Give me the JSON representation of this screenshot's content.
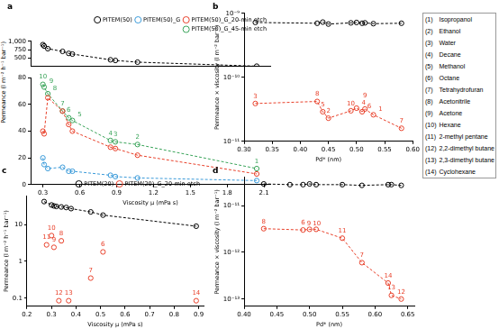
{
  "chart_data": [
    {
      "type": "scatter",
      "title": "a",
      "x_label": "Viscosity μ (mPa s)",
      "y_label": "Permeance (l m⁻² h⁻¹ bar⁻¹)",
      "x": [
        0.3,
        0.31,
        0.34,
        0.46,
        0.51,
        0.54,
        0.85,
        0.89,
        1.07,
        2.04
      ],
      "xlim": [
        0.2,
        2.15
      ],
      "xticks": [
        0.3,
        0.6,
        0.9,
        1.2,
        1.5,
        1.8,
        2.1
      ],
      "ylim": [
        0,
        80
      ],
      "yticks": [
        0,
        20,
        40,
        60,
        80
      ],
      "y2lim": [
        250,
        1000
      ],
      "y2ticks": [
        500,
        750,
        {
          "value": 1000,
          "label": "1,000"
        }
      ],
      "grid": false,
      "legend": "top right",
      "series": [
        {
          "name": "PITEM(50)",
          "color": "#000000",
          "marker": "circle",
          "line_style": "dashed",
          "axis": "y2",
          "values": [
            900,
            860,
            780,
            700,
            640,
            620,
            450,
            430,
            380,
            260
          ]
        },
        {
          "name": "PITEM(50)_G",
          "color": "#3a9ad9",
          "marker": "circle",
          "line_style": "dashed",
          "values": [
            20,
            15,
            12,
            13,
            10,
            10,
            7,
            6,
            5,
            3
          ]
        },
        {
          "name": "PITEM(50)_G_20-min etch",
          "color": "#e8402a",
          "marker": "circle",
          "line_style": "dashed",
          "values": [
            40,
            38,
            65,
            55,
            45,
            40,
            28,
            27,
            22,
            8
          ]
        },
        {
          "name": "PITEM(50)_G_45-min etch",
          "color": "#3aa45a",
          "marker": "circle",
          "line_style": "dashed",
          "values": [
            75,
            73,
            68,
            55,
            50,
            48,
            33,
            32,
            30,
            12
          ],
          "point_labels": [
            "10",
            "9",
            "8",
            "7",
            "6",
            "5",
            "4",
            "3",
            "2",
            "1"
          ]
        }
      ]
    },
    {
      "type": "scatter",
      "title": "b",
      "x_label": "Pd* (nm)",
      "y_label": "Permeance × viscosity (l m⁻² bar⁻¹)",
      "x": [
        0.32,
        0.43,
        0.44,
        0.45,
        0.49,
        0.5,
        0.51,
        0.515,
        0.53,
        0.58
      ],
      "xlim": [
        0.3,
        0.6
      ],
      "xticks": [
        {
          "value": 0.3,
          "label": "0.30"
        },
        0.35,
        {
          "value": 0.4,
          "label": "0.40"
        },
        0.45,
        {
          "value": 0.5,
          "label": "0.50"
        },
        0.55,
        {
          "value": 0.6,
          "label": "0.60"
        }
      ],
      "log": "y",
      "ylim": [
        1e-11,
        1e-09
      ],
      "yticks": [
        {
          "value": 1e-11,
          "label": "10⁻¹¹"
        },
        {
          "value": 1e-10,
          "label": "10⁻¹⁰"
        },
        {
          "value": 1e-09,
          "label": "10⁻⁹"
        }
      ],
      "grid": false,
      "series": [
        {
          "color": "#000000",
          "marker": "circle",
          "line_style": "dashed",
          "values": [
            7.2e-10,
            7e-10,
            7.3e-10,
            6.8e-10,
            7.1e-10,
            7.2e-10,
            7e-10,
            7.1e-10,
            6.9e-10,
            7e-10
          ]
        },
        {
          "color": "#e8402a",
          "marker": "circle",
          "line_style": "dashed",
          "values": [
            3.9e-11,
            4.2e-11,
            2.9e-11,
            2.3e-11,
            3e-11,
            3.3e-11,
            2.9e-11,
            3.2e-11,
            2.6e-11,
            1.6e-11
          ],
          "point_labels": [
            "3",
            "8",
            "5",
            "2",
            "10",
            "4",
            "6",
            "9",
            "1",
            "7"
          ]
        }
      ]
    },
    {
      "type": "scatter",
      "title": "c",
      "x_label": "Viscosity μ (mPa s)",
      "y_label": "Permeance (l m⁻² h⁻¹ bar⁻¹)",
      "xlim": [
        0.2,
        0.92
      ],
      "xticks": [
        0.2,
        0.3,
        0.4,
        0.5,
        0.6,
        0.7,
        0.8,
        0.9
      ],
      "log": "y",
      "ylim": [
        0.06,
        60
      ],
      "yticks": [
        0.1,
        1,
        10
      ],
      "grid": false,
      "legend": "top right",
      "series": [
        {
          "name": "PITEM(20)",
          "color": "#000000",
          "marker": "circle",
          "line_style": "dashed",
          "x": [
            0.27,
            0.3,
            0.31,
            0.32,
            0.34,
            0.36,
            0.38,
            0.46,
            0.51,
            0.89
          ],
          "values": [
            42,
            34,
            32,
            31,
            30,
            29,
            27,
            22,
            18,
            9
          ]
        },
        {
          "name": "PITEM(20)_G_20-min etch",
          "color": "#e8402a",
          "marker": "circle",
          "line_style": "none",
          "x": [
            0.28,
            0.3,
            0.31,
            0.33,
            0.34,
            0.37,
            0.46,
            0.51,
            0.89
          ],
          "values": [
            2.8,
            5.0,
            2.4,
            0.085,
            3.6,
            0.085,
            0.35,
            1.8,
            0.085
          ],
          "point_labels": [
            "11",
            "10",
            "9",
            "12",
            "8",
            "13",
            "7",
            "6",
            "14"
          ]
        }
      ]
    },
    {
      "type": "scatter",
      "title": "d",
      "x_label": "Pd* (nm)",
      "y_label": "Permeance × viscosity (l m⁻² bar⁻¹)",
      "xlim": [
        0.4,
        0.66
      ],
      "xticks": [
        {
          "value": 0.4,
          "label": "0.40"
        },
        0.45,
        {
          "value": 0.5,
          "label": "0.50"
        },
        0.55,
        {
          "value": 0.6,
          "label": "0.60"
        },
        0.65
      ],
      "log": "y",
      "ylim": [
        7e-14,
        4e-11
      ],
      "yticks": [
        {
          "value": 1e-13,
          "label": "10⁻¹³"
        },
        {
          "value": 1e-12,
          "label": "10⁻¹²"
        },
        {
          "value": 1e-11,
          "label": "10⁻¹¹"
        }
      ],
      "grid": false,
      "series": [
        {
          "color": "#000000",
          "marker": "circle",
          "line_style": "dashed",
          "x": [
            0.43,
            0.47,
            0.49,
            0.5,
            0.51,
            0.55,
            0.58,
            0.62,
            0.625,
            0.64
          ],
          "values": [
            2.9e-11,
            2.8e-11,
            2.8e-11,
            2.9e-11,
            2.8e-11,
            2.8e-11,
            2.7e-11,
            2.8e-11,
            2.8e-11,
            2.7e-11
          ]
        },
        {
          "color": "#e8402a",
          "marker": "circle",
          "line_style": "dashed",
          "x": [
            0.43,
            0.49,
            0.5,
            0.51,
            0.55,
            0.58,
            0.62,
            0.625,
            0.64
          ],
          "values": [
            3.2e-12,
            3e-12,
            3.1e-12,
            3.1e-12,
            2e-12,
            6e-13,
            2.2e-13,
            1.2e-13,
            1e-13
          ],
          "point_labels": [
            "8",
            "6",
            "10",
            "9",
            "11",
            "7",
            "14",
            "13",
            "12"
          ]
        }
      ]
    }
  ],
  "solvent_key": [
    {
      "number": "(1)",
      "name": "Isopropanol"
    },
    {
      "number": "(2)",
      "name": "Ethanol"
    },
    {
      "number": "(3)",
      "name": "Water"
    },
    {
      "number": "(4)",
      "name": "Decane"
    },
    {
      "number": "(5)",
      "name": "Methanol"
    },
    {
      "number": "(6)",
      "name": "Octane"
    },
    {
      "number": "(7)",
      "name": "Tetrahydrofuran"
    },
    {
      "number": "(8)",
      "name": "Acetonitrile"
    },
    {
      "number": "(9)",
      "name": "Acetone"
    },
    {
      "number": "(10)",
      "name": "Hexane"
    },
    {
      "number": "(11)",
      "name": "2-methyl pentane"
    },
    {
      "number": "(12)",
      "name": "2,2-dimethyl butane"
    },
    {
      "number": "(13)",
      "name": "2,3-dimethyl butane"
    },
    {
      "number": "(14)",
      "name": "Cyclohexane"
    }
  ]
}
